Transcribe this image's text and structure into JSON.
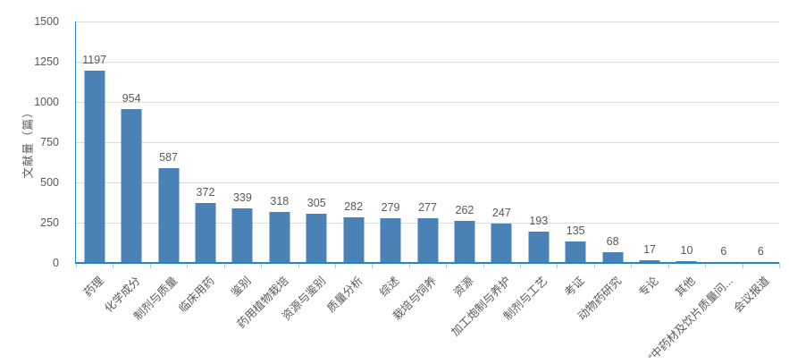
{
  "chart_data": {
    "type": "bar",
    "title": "",
    "xlabel": "",
    "ylabel": "文献量（篇）",
    "ylim": [
      0,
      1500
    ],
    "ytick_step": 250,
    "grid": true,
    "legend": "none",
    "categories": [
      "药理",
      "化学成分",
      "制剂与质量",
      "临床用药",
      "鉴别",
      "药用植物栽培",
      "资源与鉴别",
      "质量分析",
      "综述",
      "栽培与饲养",
      "资源",
      "加工炮制与养护",
      "制剂与工艺",
      "考证",
      "动物药研究",
      "专论",
      "其他",
      "“中药材及饮片质量问...",
      "会议报道"
    ],
    "values": [
      1197,
      954,
      587,
      372,
      339,
      318,
      305,
      282,
      279,
      277,
      262,
      247,
      193,
      135,
      68,
      17,
      10,
      6,
      6
    ],
    "colors": {
      "bar": "#4a82b5",
      "axis": "#2287c5",
      "grid": "#dcdcdc",
      "text": "#595959",
      "tick": "#b0cbe2"
    }
  }
}
